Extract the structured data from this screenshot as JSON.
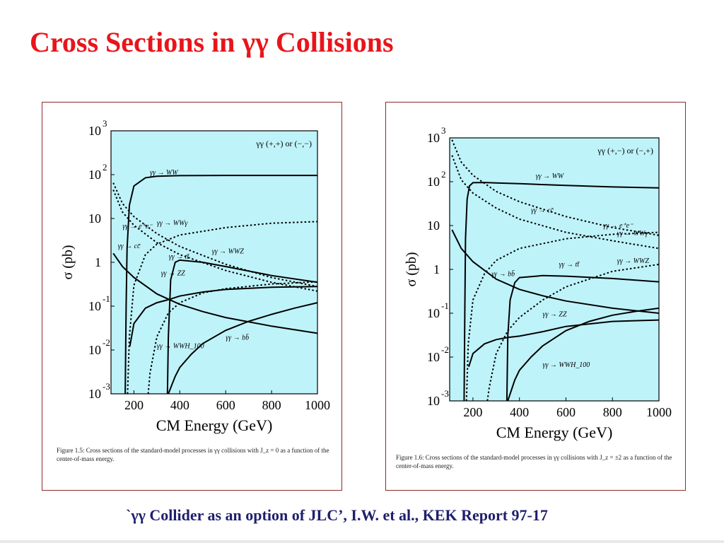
{
  "slide": {
    "title": "Cross Sections in γγ Collisions",
    "reference": "`γγ Collider as an option of JLC’, I.W. et al., KEK Report 97-17"
  },
  "colors": {
    "title": "#e8151b",
    "plot_bg": "#bff3fa",
    "reference": "#1f1f6e",
    "frame": "#8e2b2b"
  },
  "chart_data": [
    {
      "type": "line",
      "log_y": true,
      "xlabel": "CM Energy (GeV)",
      "ylabel": "σ (pb)",
      "xlim": [
        100,
        1000
      ],
      "ylim": [
        0.001,
        1000
      ],
      "x_ticks": [
        "200",
        "400",
        "600",
        "800",
        "1000"
      ],
      "y_ticks": [
        {
          "base": "10",
          "exp": "3"
        },
        {
          "base": "10",
          "exp": "2"
        },
        {
          "base": "10",
          "exp": ""
        },
        {
          "base": "1",
          "exp": ""
        },
        {
          "base": "10",
          "exp": "-1"
        },
        {
          "base": "10",
          "exp": "-2"
        },
        {
          "base": "10",
          "exp": "-3"
        }
      ],
      "legend": "γγ (+,+) or (−,−)",
      "caption_label": "Figure 1.5:",
      "caption": "Cross sections of the standard-model processes in γγ collisions with J_z = 0 as a function of the center-of-mass energy.",
      "series": [
        {
          "name": "γγ → WW",
          "style": "solid",
          "label_at": [
            270,
            100
          ],
          "x": [
            162,
            166,
            170,
            180,
            200,
            250,
            300,
            400,
            600,
            800,
            1000
          ],
          "y": [
            0.001,
            0.1,
            2,
            20,
            55,
            85,
            92,
            95,
            96,
            96,
            96
          ]
        },
        {
          "name": "γγ → e⁺e⁻",
          "style": "dotted",
          "label_at": [
            150,
            6
          ],
          "x": [
            110,
            150,
            200,
            300,
            400,
            600,
            800,
            1000
          ],
          "y": [
            65,
            22,
            11,
            4.5,
            2.3,
            0.9,
            0.45,
            0.28
          ]
        },
        {
          "name": "γγ → cc̄",
          "style": "dotted",
          "label_at": [
            130,
            2.1
          ],
          "x": [
            110,
            150,
            200,
            300,
            400,
            600,
            800,
            1000
          ],
          "y": [
            45,
            14,
            7,
            2.8,
            1.5,
            0.65,
            0.35,
            0.22
          ]
        },
        {
          "name": "γγ → WWγ",
          "style": "dotted",
          "label_at": [
            300,
            7
          ],
          "x": [
            172,
            180,
            200,
            250,
            300,
            400,
            600,
            800,
            1000
          ],
          "y": [
            0.001,
            0.02,
            0.3,
            1.5,
            2.6,
            4.2,
            6.2,
            7.8,
            8.5
          ]
        },
        {
          "name": "γγ → tt̄",
          "style": "solid",
          "label_at": [
            352,
            1.2
          ],
          "x": [
            346,
            350,
            360,
            380,
            400,
            500,
            600,
            800,
            1000
          ],
          "y": [
            0.001,
            0.02,
            0.4,
            1,
            1.12,
            1,
            0.8,
            0.5,
            0.35
          ]
        },
        {
          "name": "γγ → WWZ",
          "style": "dotted",
          "label_at": [
            540,
            1.6
          ],
          "x": [
            262,
            270,
            300,
            350,
            400,
            500,
            600,
            800,
            1000
          ],
          "y": [
            0.001,
            0.003,
            0.02,
            0.07,
            0.12,
            0.2,
            0.25,
            0.32,
            0.36
          ]
        },
        {
          "name": "γγ → ZZ",
          "style": "solid",
          "label_at": [
            318,
            0.5
          ],
          "x": [
            182,
            200,
            250,
            300,
            350,
            400,
            500,
            600,
            800,
            1000
          ],
          "y": [
            0.012,
            0.04,
            0.09,
            0.12,
            0.14,
            0.17,
            0.21,
            0.24,
            0.27,
            0.28
          ]
        },
        {
          "name": "γγ → bb̄",
          "style": "solid",
          "label_at": [
            600,
            0.017
          ],
          "x": [
            110,
            150,
            200,
            300,
            400,
            500,
            600,
            800,
            1000
          ],
          "y": [
            1.6,
            0.8,
            0.45,
            0.19,
            0.11,
            0.075,
            0.055,
            0.035,
            0.024
          ]
        },
        {
          "name": "γγ → WWH_100",
          "style": "solid",
          "label_at": [
            300,
            0.011
          ],
          "x": [
            350,
            380,
            400,
            450,
            500,
            600,
            700,
            800,
            900,
            1000
          ],
          "y": [
            0.001,
            0.0025,
            0.004,
            0.008,
            0.014,
            0.028,
            0.045,
            0.065,
            0.09,
            0.12
          ]
        }
      ]
    },
    {
      "type": "line",
      "log_y": true,
      "xlabel": "CM Energy (GeV)",
      "ylabel": "σ (pb)",
      "xlim": [
        100,
        1000
      ],
      "ylim": [
        0.001,
        1000
      ],
      "x_ticks": [
        "200",
        "400",
        "600",
        "800",
        "1000"
      ],
      "y_ticks": [
        {
          "base": "10",
          "exp": "3"
        },
        {
          "base": "10",
          "exp": "2"
        },
        {
          "base": "10",
          "exp": ""
        },
        {
          "base": "1",
          "exp": ""
        },
        {
          "base": "10",
          "exp": "-1"
        },
        {
          "base": "10",
          "exp": "-2"
        },
        {
          "base": "10",
          "exp": "-3"
        }
      ],
      "legend": "γγ (+,−) or (−,+)",
      "caption_label": "Figure 1.6:",
      "caption": "Cross sections of the standard-model processes in γγ collisions with J_z = ±2 as a function of the center-of-mass energy.",
      "series": [
        {
          "name": "γγ → WW",
          "style": "solid",
          "label_at": [
            470,
            120
          ],
          "x": [
            162,
            165,
            168,
            175,
            185,
            200,
            250,
            300,
            400,
            600,
            800,
            1000
          ],
          "y": [
            0.001,
            0.1,
            5,
            40,
            80,
            95,
            96,
            94,
            90,
            82,
            76,
            72
          ]
        },
        {
          "name": "γγ → e⁺e⁻",
          "style": "dotted",
          "label_at": [
            760,
            9
          ],
          "x": [
            110,
            150,
            200,
            300,
            400,
            600,
            800,
            1000
          ],
          "y": [
            900,
            280,
            140,
            60,
            35,
            16,
            9,
            6
          ]
        },
        {
          "name": "γγ → cc̄",
          "style": "dotted",
          "label_at": [
            450,
            20
          ],
          "x": [
            110,
            150,
            200,
            300,
            400,
            600,
            800,
            1000
          ],
          "y": [
            400,
            110,
            55,
            25,
            14,
            7,
            4.5,
            3
          ]
        },
        {
          "name": "γγ → WWγ",
          "style": "dotted",
          "label_at": [
            820,
            6
          ],
          "x": [
            172,
            180,
            200,
            250,
            300,
            400,
            600,
            800,
            1000
          ],
          "y": [
            0.001,
            0.02,
            0.2,
            0.8,
            1.6,
            3,
            5,
            6.3,
            7
          ]
        },
        {
          "name": "γγ → tt̄",
          "style": "solid",
          "label_at": [
            570,
            1.15
          ],
          "x": [
            346,
            350,
            360,
            380,
            400,
            500,
            600,
            800,
            1000
          ],
          "y": [
            0.001,
            0.03,
            0.2,
            0.5,
            0.65,
            0.72,
            0.7,
            0.62,
            0.52
          ]
        },
        {
          "name": "γγ → bb̄",
          "style": "solid",
          "label_at": [
            280,
            0.7
          ],
          "x": [
            110,
            150,
            200,
            300,
            400,
            500,
            600,
            800,
            1000
          ],
          "y": [
            8,
            3,
            1.5,
            0.6,
            0.35,
            0.25,
            0.19,
            0.13,
            0.1
          ]
        },
        {
          "name": "γγ → WWZ",
          "style": "dotted",
          "label_at": [
            820,
            1.4
          ],
          "x": [
            262,
            270,
            300,
            350,
            400,
            500,
            600,
            800,
            1000
          ],
          "y": [
            0.001,
            0.002,
            0.012,
            0.04,
            0.08,
            0.2,
            0.4,
            0.9,
            1.3
          ]
        },
        {
          "name": "γγ → ZZ",
          "style": "solid",
          "label_at": [
            500,
            0.085
          ],
          "x": [
            182,
            200,
            250,
            300,
            350,
            400,
            500,
            600,
            800,
            1000
          ],
          "y": [
            0.006,
            0.012,
            0.02,
            0.025,
            0.028,
            0.03,
            0.038,
            0.05,
            0.065,
            0.07
          ]
        },
        {
          "name": "γγ → WWH_100",
          "style": "solid",
          "label_at": [
            500,
            0.006
          ],
          "x": [
            350,
            380,
            400,
            450,
            500,
            600,
            700,
            800,
            900,
            1000
          ],
          "y": [
            0.001,
            0.003,
            0.005,
            0.01,
            0.018,
            0.04,
            0.065,
            0.09,
            0.11,
            0.13
          ]
        }
      ]
    }
  ]
}
